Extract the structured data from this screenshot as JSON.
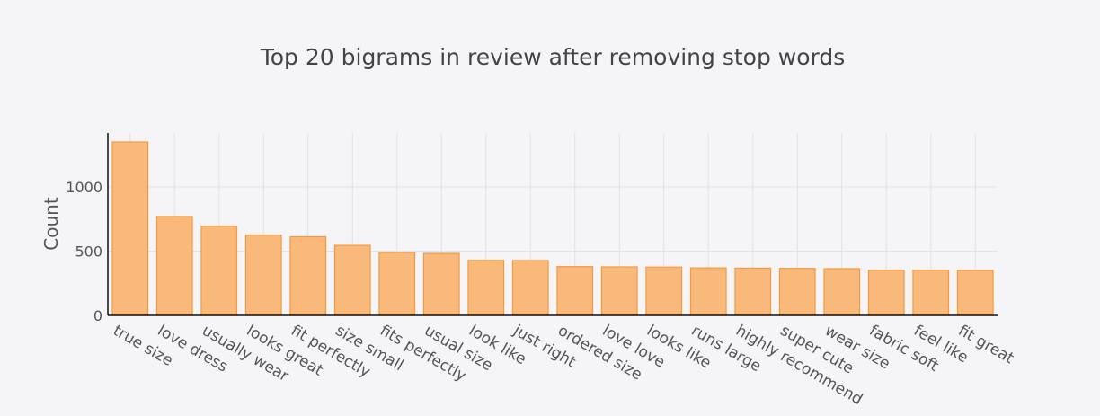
{
  "chart_data": {
    "type": "bar",
    "title": "Top 20 bigrams in review after removing stop words",
    "ylabel": "Count",
    "xlabel": "",
    "categories": [
      "true size",
      "love dress",
      "usually wear",
      "looks great",
      "fit perfectly",
      "size small",
      "fits perfectly",
      "usual size",
      "look like",
      "just right",
      "ordered size",
      "love love",
      "looks like",
      "runs large",
      "highly recommend",
      "super cute",
      "wear size",
      "fabric soft",
      "feel like",
      "fit great"
    ],
    "values": [
      1350,
      770,
      695,
      625,
      612,
      545,
      490,
      482,
      428,
      427,
      380,
      378,
      376,
      370,
      368,
      366,
      364,
      352,
      352,
      350
    ],
    "yticks": [
      0,
      500,
      1000
    ],
    "ylim": [
      0,
      1350
    ],
    "grid": true,
    "colors": {
      "bar_fill": "#f8b97a",
      "bar_stroke": "#f39a3f",
      "grid": "#e1e1e6",
      "axis": "#111111"
    }
  }
}
